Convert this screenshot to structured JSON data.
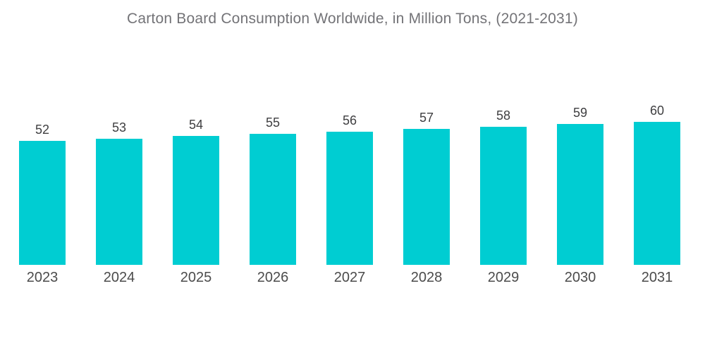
{
  "title": "Carton Board Consumption Worldwide, in Million Tons, (2021-2031)",
  "colors": {
    "bar": "#00CDD2",
    "title_text": "#737377",
    "value_label": "#3E3E40",
    "axis_label": "#4B4B4B",
    "background": "#FFFFFF"
  },
  "chart_data": {
    "type": "bar",
    "categories": [
      "2023",
      "2024",
      "2025",
      "2026",
      "2027",
      "2028",
      "2029",
      "2030",
      "2031"
    ],
    "values": [
      52,
      53,
      54,
      55,
      56,
      57,
      58,
      59,
      60
    ],
    "title": "Carton Board Consumption Worldwide, in Million Tons, (2021-2031)",
    "xlabel": "",
    "ylabel": "",
    "ylim": [
      0,
      60
    ],
    "grid": false,
    "legend": false,
    "value_labels_shown": true,
    "bar_color": "#00CDD2"
  }
}
